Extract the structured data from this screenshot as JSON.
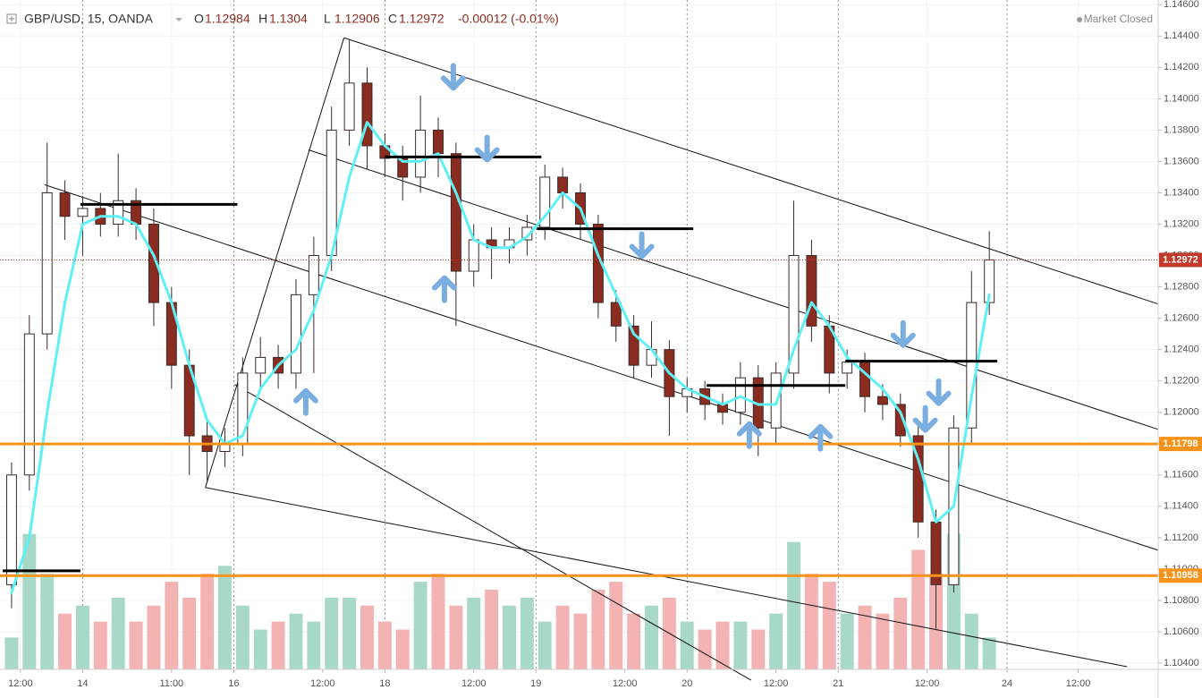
{
  "header": {
    "symbol": "GBP/USD, 15, OANDA",
    "open_label": "O",
    "open": 1.12984,
    "high_label": "H",
    "high": 1.1304,
    "low_label": "L",
    "low": 1.12906,
    "close_label": "C",
    "close": 1.12972,
    "change": "-0.00012 (-0.01%)",
    "status": "Market Closed"
  },
  "chart_data": {
    "type": "candlestick",
    "x": [
      1,
      3,
      5,
      7,
      9,
      11,
      13,
      15,
      17,
      19,
      21,
      23,
      25,
      27,
      29,
      31,
      33,
      35,
      37,
      39,
      41,
      43,
      45,
      47,
      49,
      51,
      53,
      55,
      57,
      59,
      61,
      63,
      65,
      67,
      69,
      71,
      73,
      75,
      77,
      79,
      81,
      83,
      85,
      87,
      89,
      91,
      93,
      95,
      97,
      99,
      101,
      103,
      105,
      107,
      109,
      111
    ],
    "open": [
      1.109,
      1.116,
      1.125,
      1.134,
      1.1325,
      1.133,
      1.132,
      1.1335,
      1.132,
      1.127,
      1.123,
      1.1185,
      1.1175,
      1.118,
      1.1225,
      1.1235,
      1.1225,
      1.1275,
      1.13,
      1.138,
      1.141,
      1.137,
      1.1362,
      1.135,
      1.138,
      1.1365,
      1.129,
      1.131,
      1.1305,
      1.131,
      1.1318,
      1.135,
      1.134,
      1.132,
      1.127,
      1.1255,
      1.123,
      1.124,
      1.121,
      1.1215,
      1.1205,
      1.12,
      1.1222,
      1.119,
      1.1225,
      1.13,
      1.1255,
      1.1225,
      1.1232,
      1.121,
      1.1205,
      1.1185,
      1.113,
      1.109,
      1.119,
      1.127
    ],
    "high": [
      1.1168,
      1.1262,
      1.1372,
      1.1348,
      1.1338,
      1.134,
      1.1365,
      1.1343,
      1.133,
      1.128,
      1.124,
      1.1195,
      1.119,
      1.1235,
      1.1248,
      1.1243,
      1.1285,
      1.1312,
      1.1395,
      1.1438,
      1.142,
      1.1378,
      1.137,
      1.1402,
      1.1388,
      1.1372,
      1.132,
      1.1318,
      1.1318,
      1.1326,
      1.1358,
      1.1356,
      1.1346,
      1.1326,
      1.1278,
      1.1262,
      1.1258,
      1.1246,
      1.1222,
      1.122,
      1.1212,
      1.1232,
      1.123,
      1.1232,
      1.1335,
      1.131,
      1.1262,
      1.124,
      1.1238,
      1.1218,
      1.1212,
      1.1192,
      1.1138,
      1.1198,
      1.129,
      1.13155
    ],
    "low": [
      1.1075,
      1.115,
      1.124,
      1.131,
      1.13,
      1.1312,
      1.1312,
      1.131,
      1.1255,
      1.1215,
      1.116,
      1.1155,
      1.1165,
      1.1172,
      1.1215,
      1.1215,
      1.1215,
      1.1225,
      1.129,
      1.137,
      1.1355,
      1.135,
      1.1335,
      1.134,
      1.135,
      1.1255,
      1.128,
      1.1285,
      1.1295,
      1.13,
      1.131,
      1.133,
      1.131,
      1.126,
      1.1245,
      1.1222,
      1.1222,
      1.1185,
      1.12,
      1.1195,
      1.1192,
      1.1192,
      1.1172,
      1.118,
      1.1215,
      1.1245,
      1.1212,
      1.1215,
      1.12,
      1.1195,
      1.1178,
      1.112,
      1.1062,
      1.1085,
      1.118,
      1.1262
    ],
    "close": [
      1.116,
      1.125,
      1.134,
      1.1325,
      1.133,
      1.132,
      1.1335,
      1.132,
      1.127,
      1.123,
      1.1185,
      1.1175,
      1.118,
      1.1225,
      1.1235,
      1.1225,
      1.1275,
      1.13,
      1.138,
      1.141,
      1.137,
      1.1362,
      1.135,
      1.138,
      1.1365,
      1.129,
      1.131,
      1.1305,
      1.131,
      1.1318,
      1.135,
      1.134,
      1.132,
      1.127,
      1.1255,
      1.123,
      1.124,
      1.121,
      1.1215,
      1.1205,
      1.12,
      1.1222,
      1.119,
      1.1225,
      1.13,
      1.1255,
      1.1225,
      1.1232,
      1.121,
      1.1205,
      1.1185,
      1.113,
      1.109,
      1.119,
      1.127,
      1.12972
    ],
    "up_color": "#ffffff",
    "down_color": "#8b2c21",
    "wick_color": "#3a2a2a",
    "volume": [
      20,
      85,
      60,
      35,
      40,
      30,
      45,
      30,
      40,
      55,
      45,
      60,
      65,
      40,
      25,
      30,
      35,
      30,
      45,
      45,
      40,
      30,
      25,
      55,
      60,
      40,
      45,
      50,
      40,
      45,
      30,
      40,
      35,
      50,
      55,
      35,
      40,
      45,
      30,
      25,
      30,
      30,
      25,
      35,
      80,
      60,
      55,
      35,
      40,
      35,
      45,
      75,
      60,
      85,
      35,
      20
    ],
    "volume_lim": [
      0,
      100
    ],
    "volume_up_color": "#a8d8c8",
    "volume_down_color": "#f4b3b3",
    "ma": {
      "color": "#5ff0f5",
      "values": [
        1.1085,
        1.112,
        1.12,
        1.127,
        1.132,
        1.1325,
        1.1325,
        1.132,
        1.13,
        1.127,
        1.123,
        1.1195,
        1.118,
        1.1185,
        1.1215,
        1.123,
        1.124,
        1.1265,
        1.13,
        1.135,
        1.1385,
        1.137,
        1.136,
        1.136,
        1.1365,
        1.134,
        1.131,
        1.1305,
        1.1305,
        1.1312,
        1.1325,
        1.134,
        1.133,
        1.13,
        1.1275,
        1.125,
        1.124,
        1.1225,
        1.1215,
        1.121,
        1.1205,
        1.121,
        1.1205,
        1.1205,
        1.124,
        1.127,
        1.1255,
        1.1235,
        1.1225,
        1.1215,
        1.12,
        1.117,
        1.113,
        1.114,
        1.121,
        1.1275
      ]
    },
    "xlim": [
      0,
      130
    ],
    "xticks": [
      {
        "value": 2,
        "label": "12:00"
      },
      {
        "value": 9,
        "label": "14"
      },
      {
        "value": 19,
        "label": "11:00"
      },
      {
        "value": 26,
        "label": "16"
      },
      {
        "value": 36,
        "label": "12:00"
      },
      {
        "value": 43,
        "label": "18"
      },
      {
        "value": 53,
        "label": "12:00"
      },
      {
        "value": 60,
        "label": "19"
      },
      {
        "value": 70,
        "label": "12:00"
      },
      {
        "value": 77,
        "label": "20"
      },
      {
        "value": 87,
        "label": "12:00"
      },
      {
        "value": 94,
        "label": "21"
      },
      {
        "value": 104,
        "label": "12:00"
      },
      {
        "value": 113,
        "label": "24"
      },
      {
        "value": 121,
        "label": "12:00"
      }
    ],
    "ylim": [
      1.1036,
      1.1463
    ],
    "yticks": [
      {
        "value": 1.104,
        "label": "1.10400"
      },
      {
        "value": 1.106,
        "label": "1.10600"
      },
      {
        "value": 1.108,
        "label": "1.10800"
      },
      {
        "value": 1.11,
        "label": "1.11000"
      },
      {
        "value": 1.112,
        "label": "1.11200"
      },
      {
        "value": 1.114,
        "label": "1.11400"
      },
      {
        "value": 1.116,
        "label": "1.11600"
      },
      {
        "value": 1.118,
        "label": "1.11800"
      },
      {
        "value": 1.12,
        "label": "1.12000"
      },
      {
        "value": 1.122,
        "label": "1.12200"
      },
      {
        "value": 1.124,
        "label": "1.12400"
      },
      {
        "value": 1.126,
        "label": "1.12600"
      },
      {
        "value": 1.128,
        "label": "1.12800"
      },
      {
        "value": 1.13,
        "label": "1.13000"
      },
      {
        "value": 1.132,
        "label": "1.13200"
      },
      {
        "value": 1.134,
        "label": "1.13400"
      },
      {
        "value": 1.136,
        "label": "1.13600"
      },
      {
        "value": 1.138,
        "label": "1.13800"
      },
      {
        "value": 1.14,
        "label": "1.14000"
      },
      {
        "value": 1.142,
        "label": "1.14200"
      },
      {
        "value": 1.144,
        "label": "1.14400"
      },
      {
        "value": 1.146,
        "label": "1.14600"
      }
    ],
    "last_price": {
      "value": 1.12972,
      "color": "#c0392b"
    },
    "levels": [
      {
        "value": 1.11798,
        "color": "#f7931a"
      },
      {
        "value": 1.10958,
        "color": "#f7931a"
      }
    ],
    "trend_lines": [
      {
        "x": [
          38.4,
          130
        ],
        "y": [
          1.14389,
          1.12691
        ]
      },
      {
        "x": [
          34.4,
          130
        ],
        "y": [
          1.13674,
          1.11891
        ]
      },
      {
        "x": [
          4.73,
          130
        ],
        "y": [
          1.13451,
          1.1112
        ]
      },
      {
        "x": [
          22.8,
          126.5
        ],
        "y": [
          1.1152,
          1.10377
        ]
      },
      {
        "x": [
          22.8,
          38.4
        ],
        "y": [
          1.1152,
          1.14389
        ]
      },
      {
        "x": [
          26.1,
          84.2
        ],
        "y": [
          1.12177,
          1.10291
        ]
      }
    ],
    "support_lines": [
      {
        "x": [
          8.75,
          26.4
        ],
        "y": [
          1.13326,
          1.13326
        ]
      },
      {
        "x": [
          0,
          8.75
        ],
        "y": [
          1.10989,
          1.10989
        ]
      },
      {
        "x": [
          43,
          60.6
        ],
        "y": [
          1.13629,
          1.13629
        ]
      },
      {
        "x": [
          60.1,
          77.7
        ],
        "y": [
          1.13171,
          1.13171
        ]
      },
      {
        "x": [
          79.2,
          94.8
        ],
        "y": [
          1.12171,
          1.12171
        ]
      },
      {
        "x": [
          94.8,
          111.9
        ],
        "y": [
          1.12326,
          1.12326
        ]
      }
    ],
    "arrow_color": "#7aaee0",
    "arrows": [
      {
        "x": 50.7,
        "y": 1.14131,
        "dir": "down"
      },
      {
        "x": 54.5,
        "y": 1.13674,
        "dir": "down"
      },
      {
        "x": 71.9,
        "y": 1.13057,
        "dir": "down"
      },
      {
        "x": 101.3,
        "y": 1.12491,
        "dir": "down"
      },
      {
        "x": 105.3,
        "y": 1.1212,
        "dir": "down"
      },
      {
        "x": 103.8,
        "y": 1.11949,
        "dir": "down"
      },
      {
        "x": 49.7,
        "y": 1.12794,
        "dir": "up"
      },
      {
        "x": 34.1,
        "y": 1.12074,
        "dir": "up"
      },
      {
        "x": 84.0,
        "y": 1.11863,
        "dir": "up"
      },
      {
        "x": 92.0,
        "y": 1.11846,
        "dir": "up"
      }
    ]
  }
}
